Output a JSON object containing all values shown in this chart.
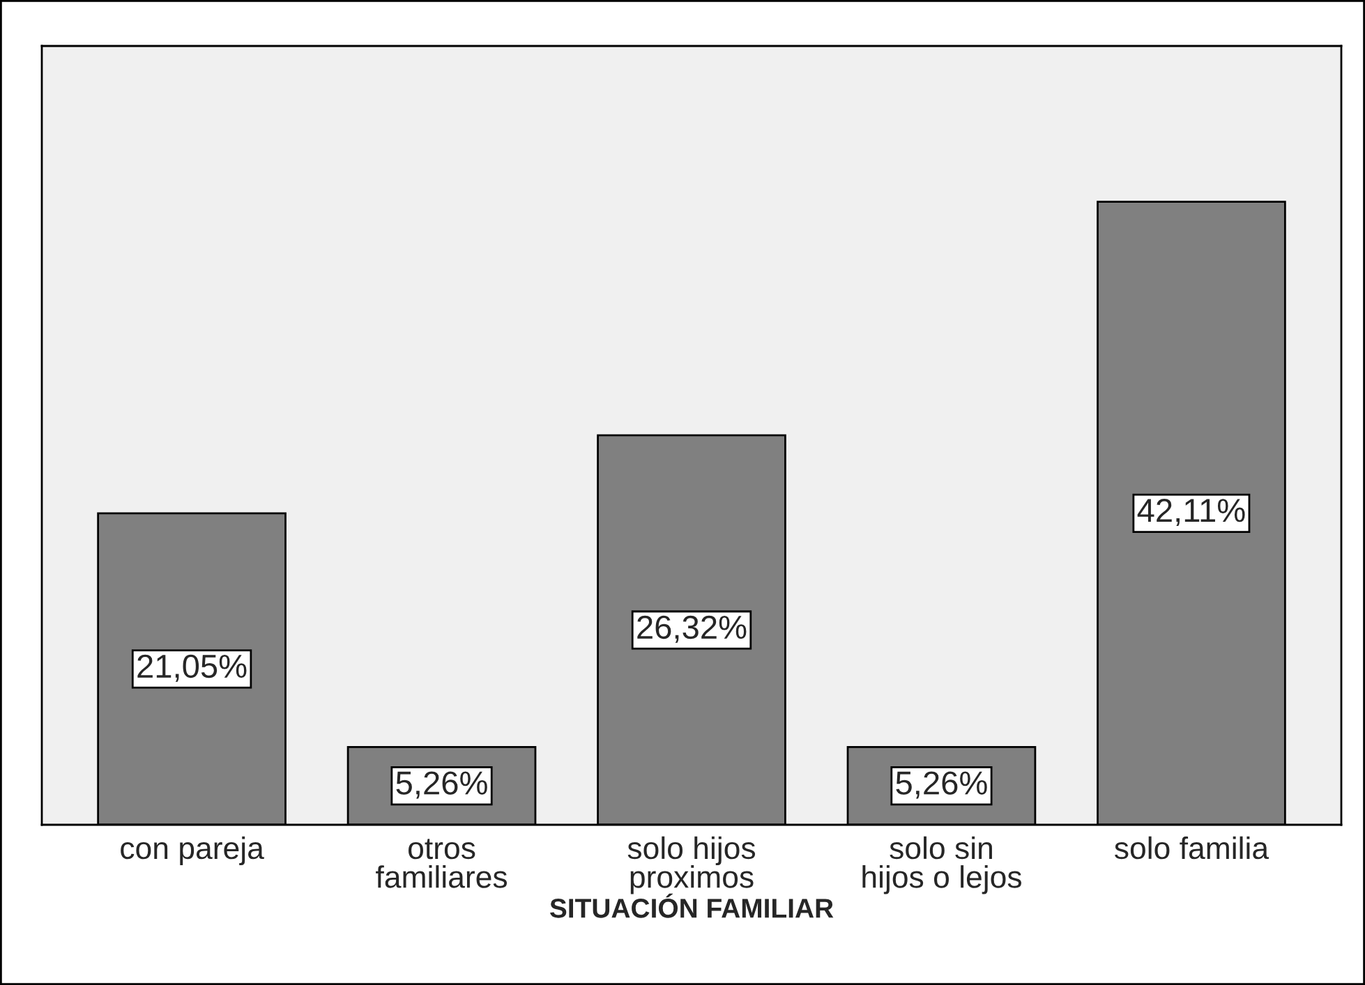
{
  "chart_data": {
    "type": "bar",
    "xlabel": "SITUACIÓN FAMILIAR",
    "categories": [
      "con pareja",
      "otros\nfamiliares",
      "solo hijos\nproximos",
      "solo sin\nhijos o lejos",
      "solo familia"
    ],
    "values": [
      21.05,
      5.26,
      26.32,
      5.26,
      42.11
    ],
    "value_labels": [
      "21,05%",
      "5,26%",
      "26,32%",
      "5,26%",
      "42,11%"
    ],
    "color": "#808080",
    "tick_labels": "x",
    "grid": false,
    "legend": false
  }
}
